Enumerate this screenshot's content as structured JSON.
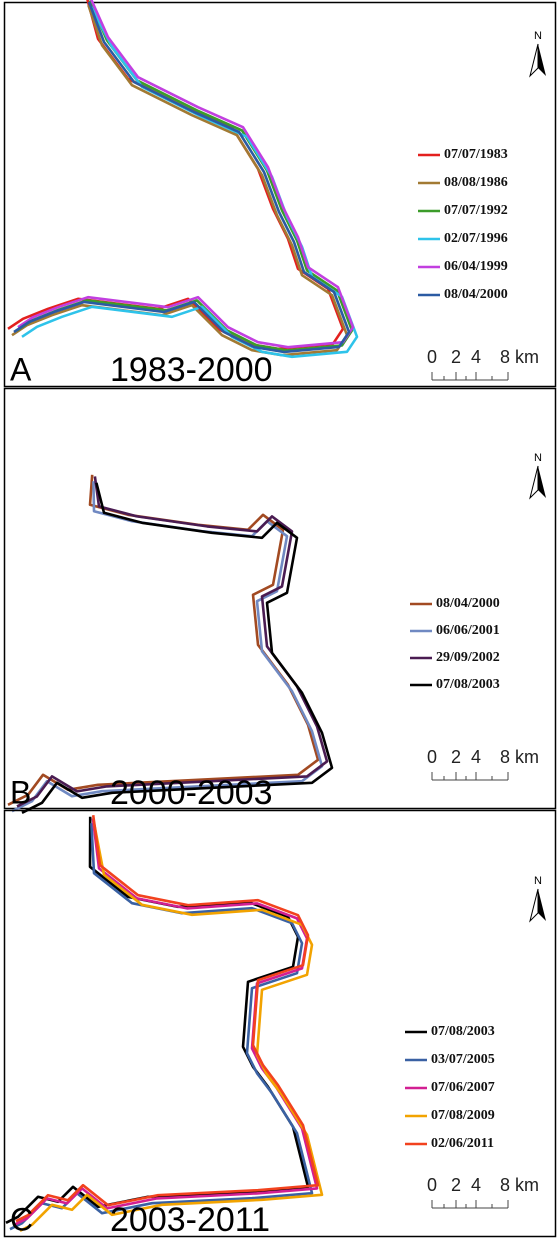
{
  "panels": [
    {
      "label": "A",
      "period": "1983-2000",
      "north": "N",
      "scale": [
        "0",
        "2",
        "4",
        "8 km"
      ],
      "legend": [
        {
          "date": "07/07/1983",
          "color": "#e3201e"
        },
        {
          "date": "08/08/1986",
          "color": "#a27a33"
        },
        {
          "date": "07/07/1992",
          "color": "#3c9c2a"
        },
        {
          "date": "02/07/1996",
          "color": "#2ec3ea"
        },
        {
          "date": "06/04/1999",
          "color": "#c23fe0"
        },
        {
          "date": "08/04/2000",
          "color": "#2b5ba3"
        }
      ]
    },
    {
      "label": "B",
      "period": "2000-2003",
      "north": "N",
      "scale": [
        "0",
        "2",
        "4",
        "8 km"
      ],
      "legend": [
        {
          "date": "08/04/2000",
          "color": "#a24a22"
        },
        {
          "date": "06/06/2001",
          "color": "#7089c2"
        },
        {
          "date": "29/09/2002",
          "color": "#4a1c52"
        },
        {
          "date": "07/08/2003",
          "color": "#000000"
        }
      ]
    },
    {
      "label": "C",
      "period": "2003-2011",
      "north": "N",
      "scale": [
        "0",
        "2",
        "4",
        "8 km"
      ],
      "legend": [
        {
          "date": "07/08/2003",
          "color": "#000000"
        },
        {
          "date": "03/07/2005",
          "color": "#3a61a3"
        },
        {
          "date": "07/06/2007",
          "color": "#d21f92"
        },
        {
          "date": "07/08/2009",
          "color": "#f2a300"
        },
        {
          "date": "02/06/2011",
          "color": "#f2421e"
        }
      ]
    }
  ]
}
